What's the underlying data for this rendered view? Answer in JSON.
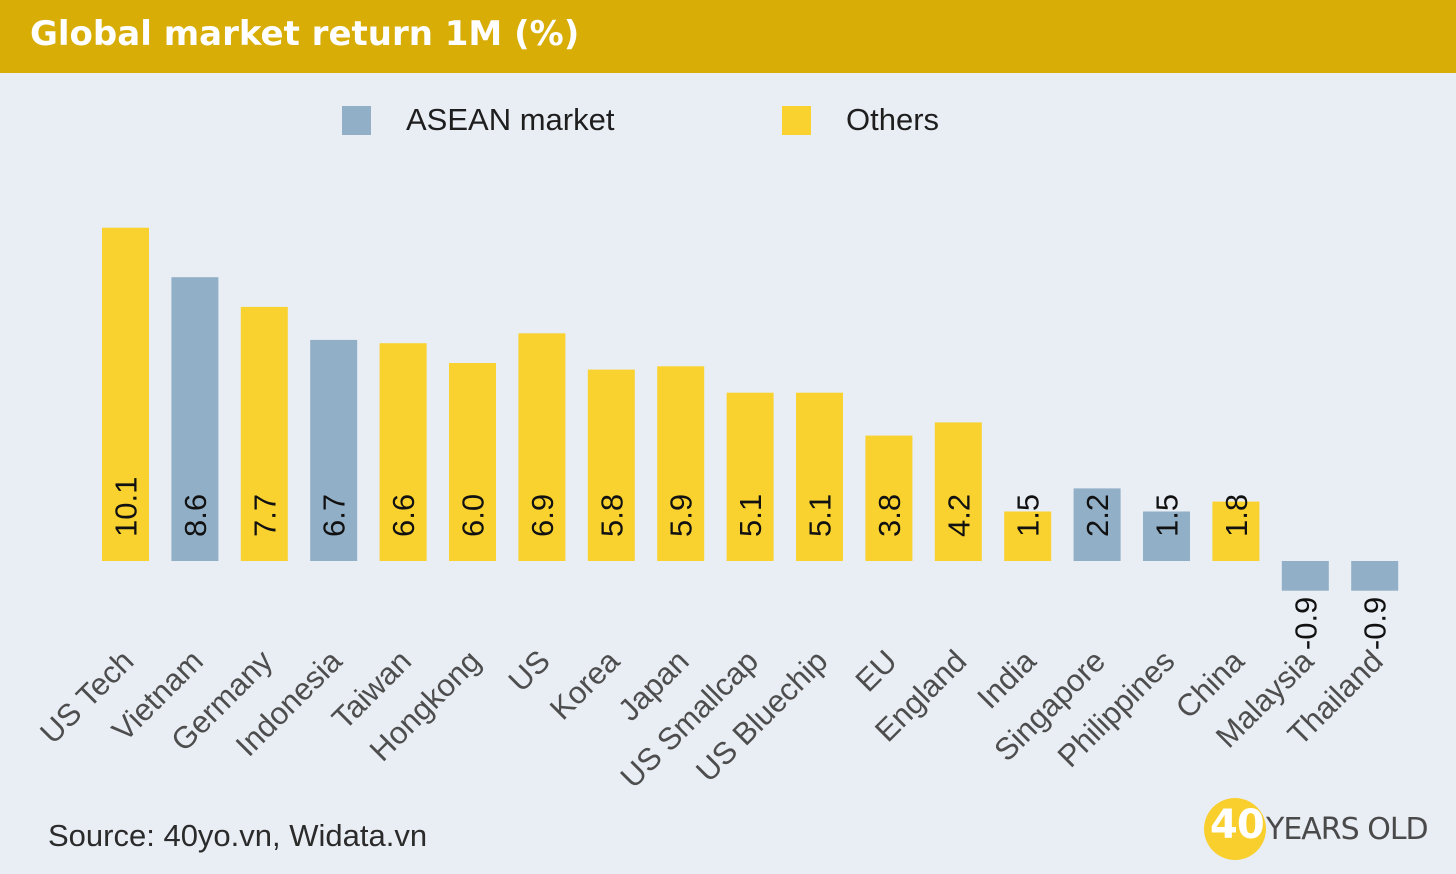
{
  "header": {
    "title": "Global market return 1M (%)"
  },
  "footer": {
    "source": "Source: 40yo.vn, Widata.vn"
  },
  "logo": {
    "number": "40",
    "text": "YEARS OLD"
  },
  "colors": {
    "header": "#d7ad06",
    "asean": "#91afc6",
    "others": "#f9d22f",
    "background": "#e9eef5"
  },
  "chart_data": {
    "type": "bar",
    "categories": [
      "US Tech",
      "Vietnam",
      "Germany",
      "Indonesia",
      "Taiwan",
      "Hongkong",
      "US",
      "Korea",
      "Japan",
      "US Smallcap",
      "US Bluechip",
      "EU",
      "England",
      "India",
      "Singapore",
      "Philippines",
      "China",
      "Malaysia",
      "Thailand"
    ],
    "values": [
      10.1,
      8.6,
      7.7,
      6.7,
      6.6,
      6.0,
      6.9,
      5.8,
      5.9,
      5.1,
      5.1,
      3.8,
      4.2,
      1.5,
      2.2,
      1.5,
      1.8,
      -0.9,
      -0.9
    ],
    "data_labels": [
      "10.1",
      "8.6",
      "7.7",
      "6.7",
      "6.6",
      "6.0",
      "6.9",
      "5.8",
      "5.9",
      "5.1",
      "5.1",
      "3.8",
      "4.2",
      "1.5",
      "2.2",
      "1.5",
      "1.8",
      "-0.9",
      "-0.9"
    ],
    "groups": [
      "Others",
      "ASEAN market",
      "Others",
      "ASEAN market",
      "Others",
      "Others",
      "Others",
      "Others",
      "Others",
      "Others",
      "Others",
      "Others",
      "Others",
      "Others",
      "ASEAN market",
      "ASEAN market",
      "Others",
      "ASEAN market",
      "ASEAN market"
    ],
    "legend": [
      {
        "name": "ASEAN market",
        "color": "#91afc6"
      },
      {
        "name": "Others",
        "color": "#f9d22f"
      }
    ],
    "legend_position": "top",
    "ylim": [
      -1,
      10.5
    ],
    "grid": false
  }
}
